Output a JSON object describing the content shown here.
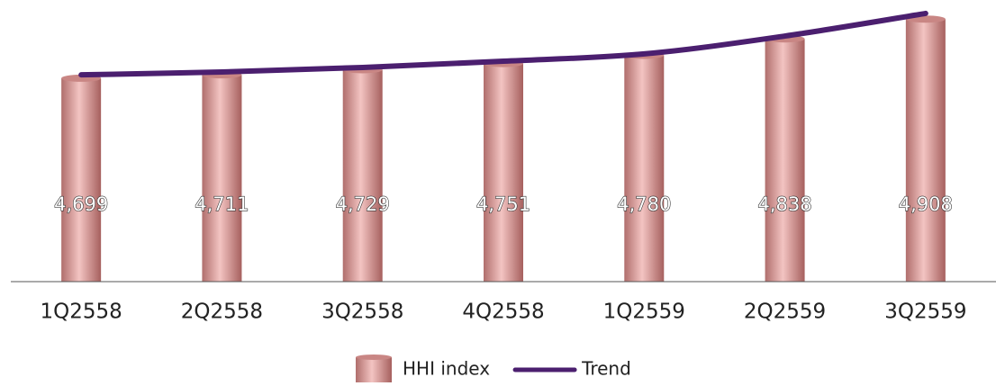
{
  "chart_data": {
    "type": "bar",
    "categories": [
      "1Q2558",
      "2Q2558",
      "3Q2558",
      "4Q2558",
      "1Q2559",
      "2Q2559",
      "3Q2559"
    ],
    "series": [
      {
        "name": "HHI index",
        "type": "bar",
        "color": "#d99694",
        "values": [
          4699,
          4711,
          4729,
          4751,
          4780,
          4838,
          4908
        ],
        "value_labels": [
          "4,699",
          "4,711",
          "4,729",
          "4,751",
          "4,780",
          "4,838",
          "4,908"
        ]
      },
      {
        "name": "Trend",
        "type": "line",
        "color": "#4b1f6f",
        "values": [
          4711,
          4721,
          4737,
          4759,
          4785,
          4848,
          4928
        ]
      }
    ],
    "ylim": [
      3980,
      4950
    ],
    "legend": "bottom"
  }
}
